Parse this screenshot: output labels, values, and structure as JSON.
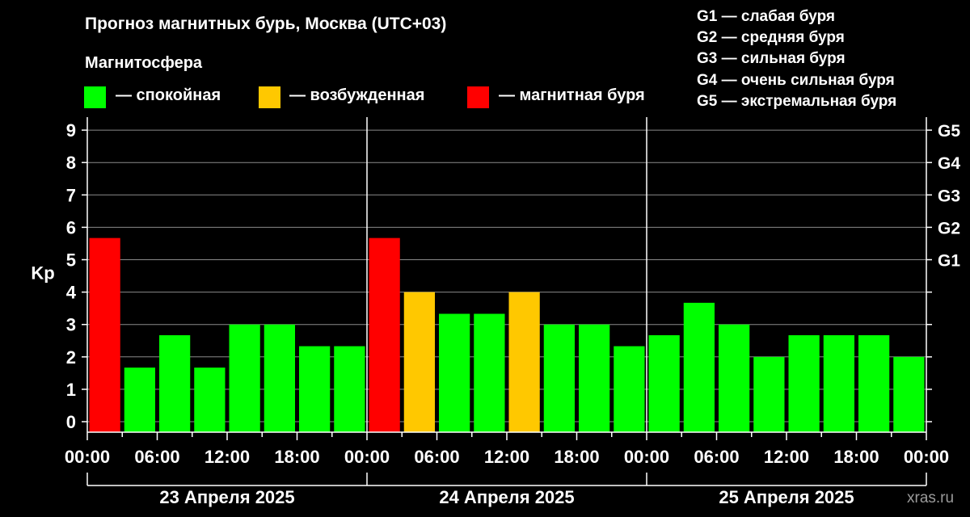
{
  "title": "Прогноз магнитных бурь, Москва (UTC+03)",
  "legend": {
    "title": "Магнитосфера",
    "items": [
      {
        "label": "— спокойная",
        "color": "#00ff00"
      },
      {
        "label": "— возбужденная",
        "color": "#ffc800"
      },
      {
        "label": "— магнитная буря",
        "color": "#ff0000"
      }
    ]
  },
  "g_scale_legend": [
    "G1 — слабая буря",
    "G2 — средняя буря",
    "G3 — сильная буря",
    "G4 — очень сильная буря",
    "G5 — экстремальная буря"
  ],
  "watermark": "xras.ru",
  "chart_data": {
    "type": "bar",
    "ylabel": "Kp",
    "ylim": [
      0,
      9
    ],
    "y_ticks": [
      "0",
      "1",
      "2",
      "3",
      "4",
      "5",
      "6",
      "7",
      "8",
      "9"
    ],
    "right_axis_labels": [
      {
        "y": 5,
        "label": "G1"
      },
      {
        "y": 6,
        "label": "G2"
      },
      {
        "y": 7,
        "label": "G3"
      },
      {
        "y": 8,
        "label": "G4"
      },
      {
        "y": 9,
        "label": "G5"
      }
    ],
    "x_tick_labels": [
      "00:00",
      "06:00",
      "12:00",
      "18:00",
      "00:00",
      "06:00",
      "12:00",
      "18:00",
      "00:00",
      "06:00",
      "12:00",
      "18:00",
      "00:00"
    ],
    "day_labels": [
      "23 Апреля 2025",
      "24 Апреля 2025",
      "25 Апреля 2025"
    ],
    "grid": true,
    "interval_hours": 3,
    "values": [
      5.67,
      1.67,
      2.67,
      1.67,
      3.0,
      3.0,
      2.33,
      2.33,
      5.67,
      4.0,
      3.33,
      3.33,
      4.0,
      3.0,
      3.0,
      2.33,
      2.67,
      3.67,
      3.0,
      2.0,
      2.67,
      2.67,
      2.67,
      2.0
    ],
    "colors": {
      "quiet": "#00ff00",
      "active": "#ffc800",
      "storm": "#ff0000"
    }
  }
}
